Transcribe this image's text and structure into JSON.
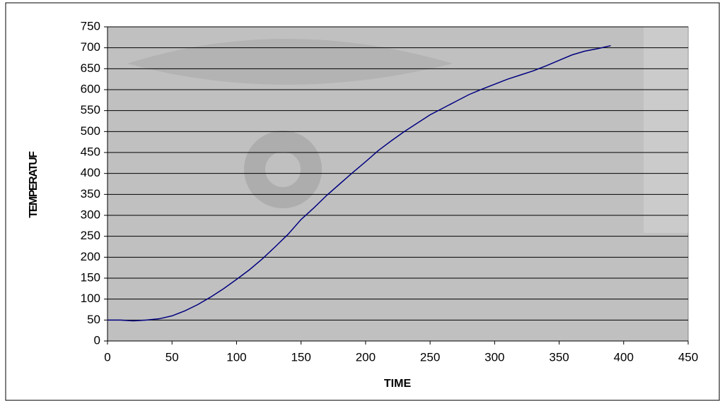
{
  "chart_data": {
    "type": "line",
    "x_label": "TIME",
    "y_label": "TEMPERATUF",
    "x": [
      0,
      10,
      20,
      30,
      40,
      50,
      60,
      70,
      80,
      90,
      100,
      110,
      120,
      130,
      140,
      150,
      160,
      170,
      180,
      190,
      200,
      210,
      220,
      230,
      240,
      250,
      260,
      270,
      280,
      290,
      300,
      310,
      320,
      330,
      340,
      350,
      360,
      370,
      380,
      390
    ],
    "series": [
      {
        "color": "#000080",
        "values": [
          50,
          50,
          48,
          50,
          53,
          60,
          72,
          87,
          105,
          125,
          147,
          170,
          196,
          225,
          255,
          290,
          318,
          348,
          375,
          402,
          428,
          455,
          478,
          500,
          520,
          540,
          556,
          572,
          588,
          601,
          613,
          625,
          635,
          645,
          657,
          670,
          683,
          692,
          698,
          705
        ]
      }
    ],
    "xlim": [
      0,
      450
    ],
    "xticks": [
      0,
      50,
      100,
      150,
      200,
      250,
      300,
      350,
      400,
      450
    ],
    "ylim": [
      0,
      750
    ],
    "yticks": [
      0,
      50,
      100,
      150,
      200,
      250,
      300,
      350,
      400,
      450,
      500,
      550,
      600,
      650,
      700,
      750
    ],
    "grid": true
  }
}
